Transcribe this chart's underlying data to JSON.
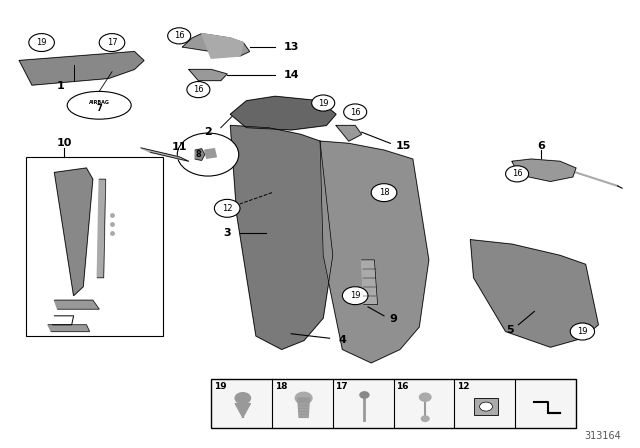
{
  "bg_color": "#ffffff",
  "diagram_id": "313164",
  "part_color": "#888888",
  "part_color2": "#999999",
  "part_color3": "#aaaaaa",
  "line_color": "#000000",
  "text_color": "#000000"
}
